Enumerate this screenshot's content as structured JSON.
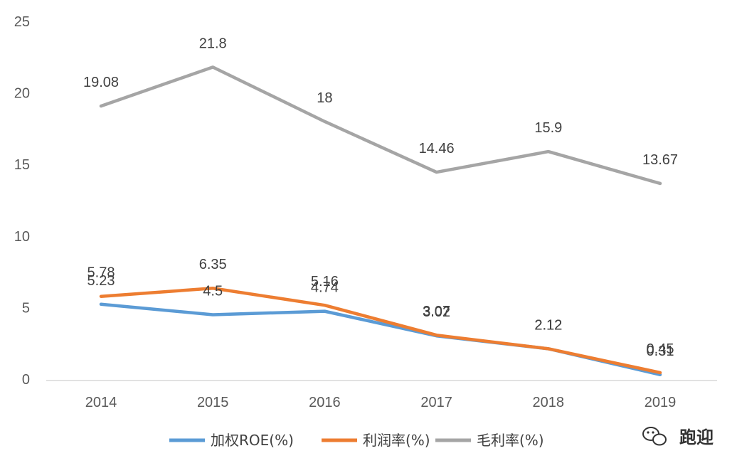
{
  "chart_data": {
    "type": "line",
    "categories": [
      "2014",
      "2015",
      "2016",
      "2017",
      "2018",
      "2019"
    ],
    "ylim": [
      0,
      25
    ],
    "yticks": [
      0,
      5,
      10,
      15,
      20,
      25
    ],
    "series": [
      {
        "name": "加权ROE(%)",
        "color": "#5b9bd5",
        "values": [
          5.23,
          4.5,
          4.74,
          3.02,
          2.12,
          0.31
        ],
        "labels": [
          "5.23",
          "4.5",
          "4.74",
          "3.02",
          "2.12",
          "0.31"
        ]
      },
      {
        "name": "利润率(%)",
        "color": "#ed7d31",
        "values": [
          5.78,
          6.35,
          5.16,
          3.07,
          2.12,
          0.45
        ],
        "labels": [
          "5.78",
          "6.35",
          "5.16",
          "3.07",
          "2.12",
          "0.45"
        ]
      },
      {
        "name": "毛利率(%)",
        "color": "#a5a5a5",
        "values": [
          19.08,
          21.8,
          18,
          14.46,
          15.9,
          13.67
        ],
        "labels": [
          "19.08",
          "21.8",
          "18",
          "14.46",
          "15.9",
          "13.67"
        ]
      }
    ],
    "legend_position": "bottom",
    "grid": false
  },
  "watermark": {
    "text": "跑迎",
    "icon": "wechat-icon"
  }
}
